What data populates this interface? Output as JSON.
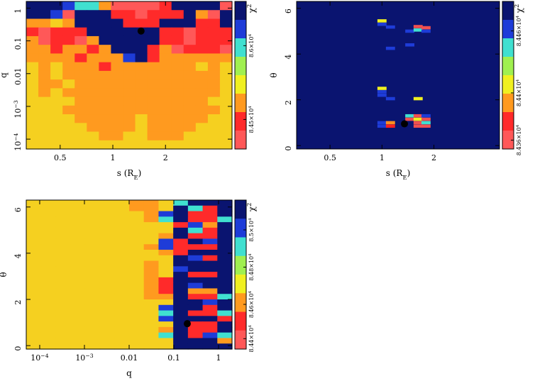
{
  "chart_data": [
    {
      "type": "heatmap",
      "id": "s-q",
      "xlabel": "s (R",
      "xlabel_sub": "E",
      "xlabel_close": ")",
      "ylabel": "q",
      "xscale": "log",
      "yscale": "log",
      "xlim": [
        0.32,
        4.8
      ],
      "ylim": [
        5e-05,
        1.6
      ],
      "xticks": [
        {
          "v": 0.5,
          "t": "0.5"
        },
        {
          "v": 1,
          "t": "1"
        },
        {
          "v": 2,
          "t": "2"
        }
      ],
      "yticks": [
        {
          "v": 1,
          "t": "1"
        },
        {
          "v": 0.1,
          "t": "0.1"
        },
        {
          "v": 0.01,
          "t": "0.01"
        },
        {
          "v": 0.001,
          "t": "10",
          "sup": "−3"
        },
        {
          "v": 0.0001,
          "t": "10",
          "sup": "−4"
        }
      ],
      "grid_rows": [
        "BBBCGGOrrrrRBBBBr",
        "BBCrBBBRRrRRRBOrB",
        "OOYOBBBBRRRBBBRRB",
        "RrRRRBBBBBBRRrRRR",
        "OrRRrOBBBBBRRrRRR",
        "OOROOROBBBROrRRRr",
        "OOOOROOOCBROOOOOO",
        "YOYOOOROOOOOOOYOY",
        "YOYOOOOOOOOOOOOOY",
        "YOOYOOOOOOOOOOOOY",
        "YOYOOOOOOOOOOOOOY",
        "YYYYOOOOOOOOOOOYY",
        "YYYOOOOOOOOOOOOOY",
        "YYYYOOOOOYOOOOOYY",
        "YYYYYOOOOYOOOOYYY",
        "YYYYYYOOYYOOOYYYY",
        "YYYYYYYYYYYYYYYYY"
      ],
      "marker": {
        "x": 1.45,
        "y": 0.2
      },
      "colorbar": {
        "label": "χ",
        "label_sup": "2",
        "ticks": [
          {
            "t": "8.6×10",
            "sup": "4",
            "f": 0.3
          },
          {
            "t": "8.45×10",
            "sup": "4",
            "f": 0.8
          }
        ]
      }
    },
    {
      "type": "heatmap",
      "id": "s-theta",
      "xlabel": "s (R",
      "xlabel_sub": "E",
      "xlabel_close": ")",
      "ylabel": "θ",
      "xscale": "log",
      "yscale": "linear",
      "xlim": [
        0.32,
        4.8
      ],
      "ylim": [
        -0.15,
        6.3
      ],
      "xticks": [
        {
          "v": 0.5,
          "t": "0.5"
        },
        {
          "v": 1,
          "t": "1"
        },
        {
          "v": 2,
          "t": "2"
        }
      ],
      "yticks": [
        {
          "v": 0,
          "t": "0"
        },
        {
          "v": 2,
          "t": "2"
        },
        {
          "v": 4,
          "t": "4"
        },
        {
          "v": 6,
          "t": "6"
        }
      ],
      "background": "#0a1470",
      "cells": [
        {
          "x": 1.0,
          "y": 5.45,
          "c": "#f0f020"
        },
        {
          "x": 1.0,
          "y": 5.3,
          "c": "#1e3cd8"
        },
        {
          "x": 1.12,
          "y": 5.18,
          "c": "#1e3cd8"
        },
        {
          "x": 1.45,
          "y": 5.0,
          "c": "#1e3cd8"
        },
        {
          "x": 1.62,
          "y": 5.2,
          "c": "#f05050"
        },
        {
          "x": 1.62,
          "y": 5.05,
          "c": "#40e0d0"
        },
        {
          "x": 1.8,
          "y": 5.15,
          "c": "#f05050"
        },
        {
          "x": 1.8,
          "y": 5.0,
          "c": "#1e3cd8"
        },
        {
          "x": 1.45,
          "y": 4.4,
          "c": "#1e3cd8"
        },
        {
          "x": 1.12,
          "y": 4.25,
          "c": "#1e3cd8"
        },
        {
          "x": 1.0,
          "y": 2.5,
          "c": "#f0f020"
        },
        {
          "x": 1.0,
          "y": 2.35,
          "c": "#1e3cd8"
        },
        {
          "x": 1.0,
          "y": 2.2,
          "c": "#1e3cd8"
        },
        {
          "x": 1.12,
          "y": 2.05,
          "c": "#1e3cd8"
        },
        {
          "x": 1.62,
          "y": 2.05,
          "c": "#f0f020"
        },
        {
          "x": 1.45,
          "y": 1.3,
          "c": "#40e0d0"
        },
        {
          "x": 1.62,
          "y": 1.3,
          "c": "#f05050"
        },
        {
          "x": 1.8,
          "y": 1.3,
          "c": "#1e3cd8"
        },
        {
          "x": 1.45,
          "y": 1.15,
          "c": "#f05050"
        },
        {
          "x": 1.62,
          "y": 1.15,
          "c": "#f0f020"
        },
        {
          "x": 1.8,
          "y": 1.15,
          "c": "#f05050"
        },
        {
          "x": 1.0,
          "y": 1.0,
          "c": "#1e3cd8"
        },
        {
          "x": 1.12,
          "y": 1.0,
          "c": "#ff9020"
        },
        {
          "x": 1.62,
          "y": 1.0,
          "c": "#f05050"
        },
        {
          "x": 1.8,
          "y": 1.0,
          "c": "#40e0d0"
        },
        {
          "x": 1.0,
          "y": 0.85,
          "c": "#1e3cd8"
        },
        {
          "x": 1.12,
          "y": 0.85,
          "c": "#ff2020"
        },
        {
          "x": 1.62,
          "y": 0.85,
          "c": "#f05050"
        },
        {
          "x": 1.8,
          "y": 0.85,
          "c": "#f05050"
        }
      ],
      "marker": {
        "x": 1.35,
        "y": 0.95
      },
      "colorbar": {
        "label": "χ",
        "label_sup": "2",
        "ticks": [
          {
            "t": "8.446×10",
            "sup": "4",
            "f": 0.2
          },
          {
            "t": "8.44×10",
            "sup": "4",
            "f": 0.62
          },
          {
            "t": "8.436×10",
            "sup": "4",
            "f": 0.94
          }
        ]
      }
    },
    {
      "type": "heatmap",
      "id": "q-theta",
      "xlabel": "q",
      "ylabel": "θ",
      "xscale": "log",
      "yscale": "linear",
      "xlim": [
        5e-05,
        2.0
      ],
      "ylim": [
        -0.15,
        6.3
      ],
      "xticks": [
        {
          "v": 0.0001,
          "t": "10",
          "sup": "−4"
        },
        {
          "v": 0.001,
          "t": "10",
          "sup": "−3"
        },
        {
          "v": 0.01,
          "t": "0.01"
        },
        {
          "v": 0.1,
          "t": "0.1"
        },
        {
          "v": 1,
          "t": "1"
        }
      ],
      "yticks": [
        {
          "v": 0,
          "t": "0"
        },
        {
          "v": 2,
          "t": "2"
        },
        {
          "v": 4,
          "t": "4"
        },
        {
          "v": 6,
          "t": "6"
        }
      ],
      "grid_rows": [
        "YYYYYYYOOYGBBB",
        "YYYYYYYOOYBGRB",
        "YYYYYYYYOCBRRB",
        "YYYYYYYYOGBRRG",
        "YYYYYYYYYYRCOB",
        "YYYYYYYYYYBGRB",
        "YYYYYYYYYOBRRB",
        "YYYYYYYYYCRBCB",
        "YYYYYYYYOCRRRB",
        "YYYYYYYYYORBBB",
        "YYYYYYYYYYBCRB",
        "YYYYYYYYOYBBBB",
        "YYYYYYYYOYCBBB",
        "YYYYYYYYOYBRRB",
        "YYYYYYYYORBBBB",
        "YYYYYYYYORBCBB",
        "YYYYYYYYORBOOB",
        "YYYYYYYYOOBRRG",
        "YYYYYYYYYYBBCB",
        "YYYYYYYYYCBBRB",
        "YYYYYYYYYGBRRG",
        "YYYYYYYYYCBBBR",
        "YYYYYYYYYYBRRB",
        "YYYYYYYYYOBRRB",
        "YYYYYYYYYGBRCG",
        "YYYYYYYYYYBBBO",
        "YYYYYYYYYYBBBB"
      ],
      "marker": {
        "x": 0.2,
        "y": 0.95
      },
      "colorbar": {
        "label": "χ",
        "label_sup": "2",
        "ticks": [
          {
            "t": "8.5×10",
            "sup": "4",
            "f": 0.2
          },
          {
            "t": "8.48×10",
            "sup": "4",
            "f": 0.45
          },
          {
            "t": "8.46×10",
            "sup": "4",
            "f": 0.7
          },
          {
            "t": "8.44×10",
            "sup": "4",
            "f": 0.93
          }
        ]
      }
    }
  ],
  "palette": {
    "B": "#0a1470",
    "C": "#1e3cd8",
    "G": "#40e0d0",
    "Y": "#f5d020",
    "O": "#ff9a1f",
    "R": "#ff2a2a",
    "r": "#ff5858",
    "L": "#a0f050"
  }
}
